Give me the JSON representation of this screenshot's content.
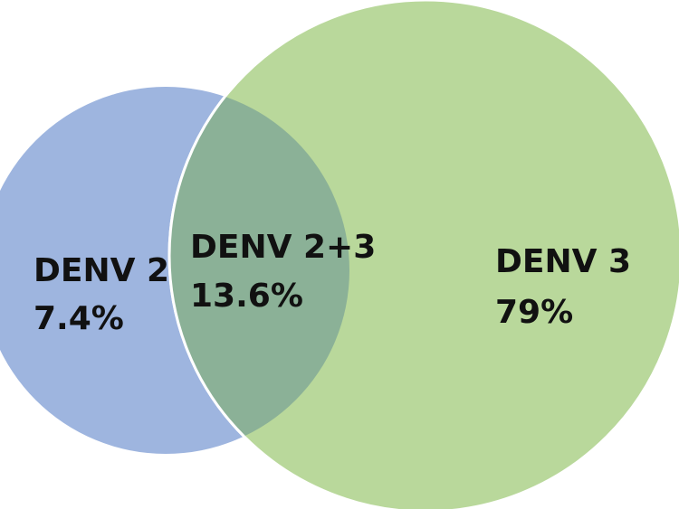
{
  "colors": {
    "set_a": "#9eb5df",
    "set_b": "#b9d89b",
    "overlap": "#8bb197",
    "outline": "#ffffff"
  },
  "sets": [
    {
      "name": "DENV 2",
      "value": "7.4%"
    },
    {
      "name": "DENV 2+3",
      "value": "13.6%"
    },
    {
      "name": "DENV 3",
      "value": "79%"
    }
  ]
}
